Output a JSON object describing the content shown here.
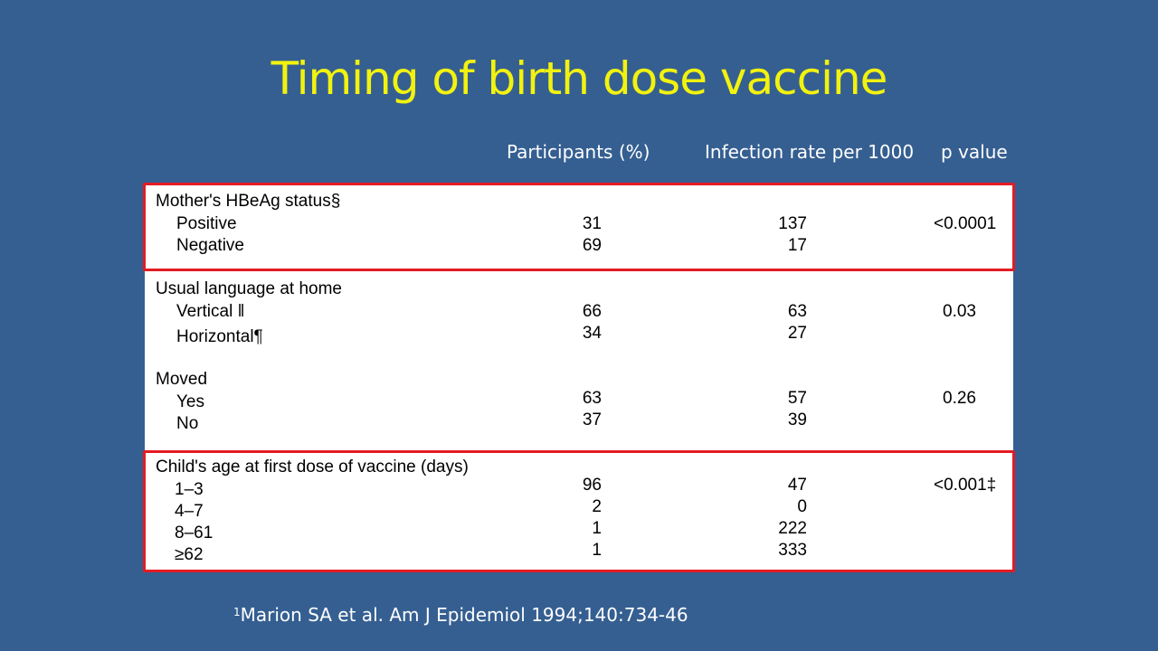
{
  "slide": {
    "title": "Timing of birth dose vaccine",
    "columns": {
      "participants": "Participants (%)",
      "infection_rate": "Infection rate per 1000",
      "p_value": "p value"
    },
    "groups": [
      {
        "heading": "Mother's HBeAg status§",
        "highlighted": true,
        "rows": [
          {
            "label": "Positive",
            "participants": "31",
            "rate": "137",
            "p": "<0.0001"
          },
          {
            "label": "Negative",
            "participants": "69",
            "rate": "17",
            "p": ""
          }
        ]
      },
      {
        "heading": "Usual language at home",
        "highlighted": false,
        "rows": [
          {
            "label": "Vertical ǁ",
            "participants": "66",
            "rate": "63",
            "p": "0.03"
          },
          {
            "label": "Horizontal¶",
            "participants": "34",
            "rate": "27",
            "p": ""
          }
        ]
      },
      {
        "heading": "Moved",
        "highlighted": false,
        "rows": [
          {
            "label": "Yes",
            "participants": "63",
            "rate": "57",
            "p": "0.26"
          },
          {
            "label": "No",
            "participants": "37",
            "rate": "39",
            "p": ""
          }
        ]
      },
      {
        "heading": "Child's age at first dose of vaccine (days)",
        "highlighted": true,
        "rows": [
          {
            "label": "1–3",
            "participants": "96",
            "rate": "47",
            "p": "<0.001‡"
          },
          {
            "label": "4–7",
            "participants": "2",
            "rate": "0",
            "p": ""
          },
          {
            "label": "8–61",
            "participants": "1",
            "rate": "222",
            "p": ""
          },
          {
            "label": "≥62",
            "participants": "1",
            "rate": "333",
            "p": ""
          }
        ]
      }
    ],
    "citation": {
      "superscript": "1",
      "text": "Marion SA et al. Am J Epidemiol 1994;140:734-46"
    },
    "colors": {
      "background": "#355f91",
      "title": "#f2f20f",
      "highlight_border": "#e31b23"
    }
  }
}
